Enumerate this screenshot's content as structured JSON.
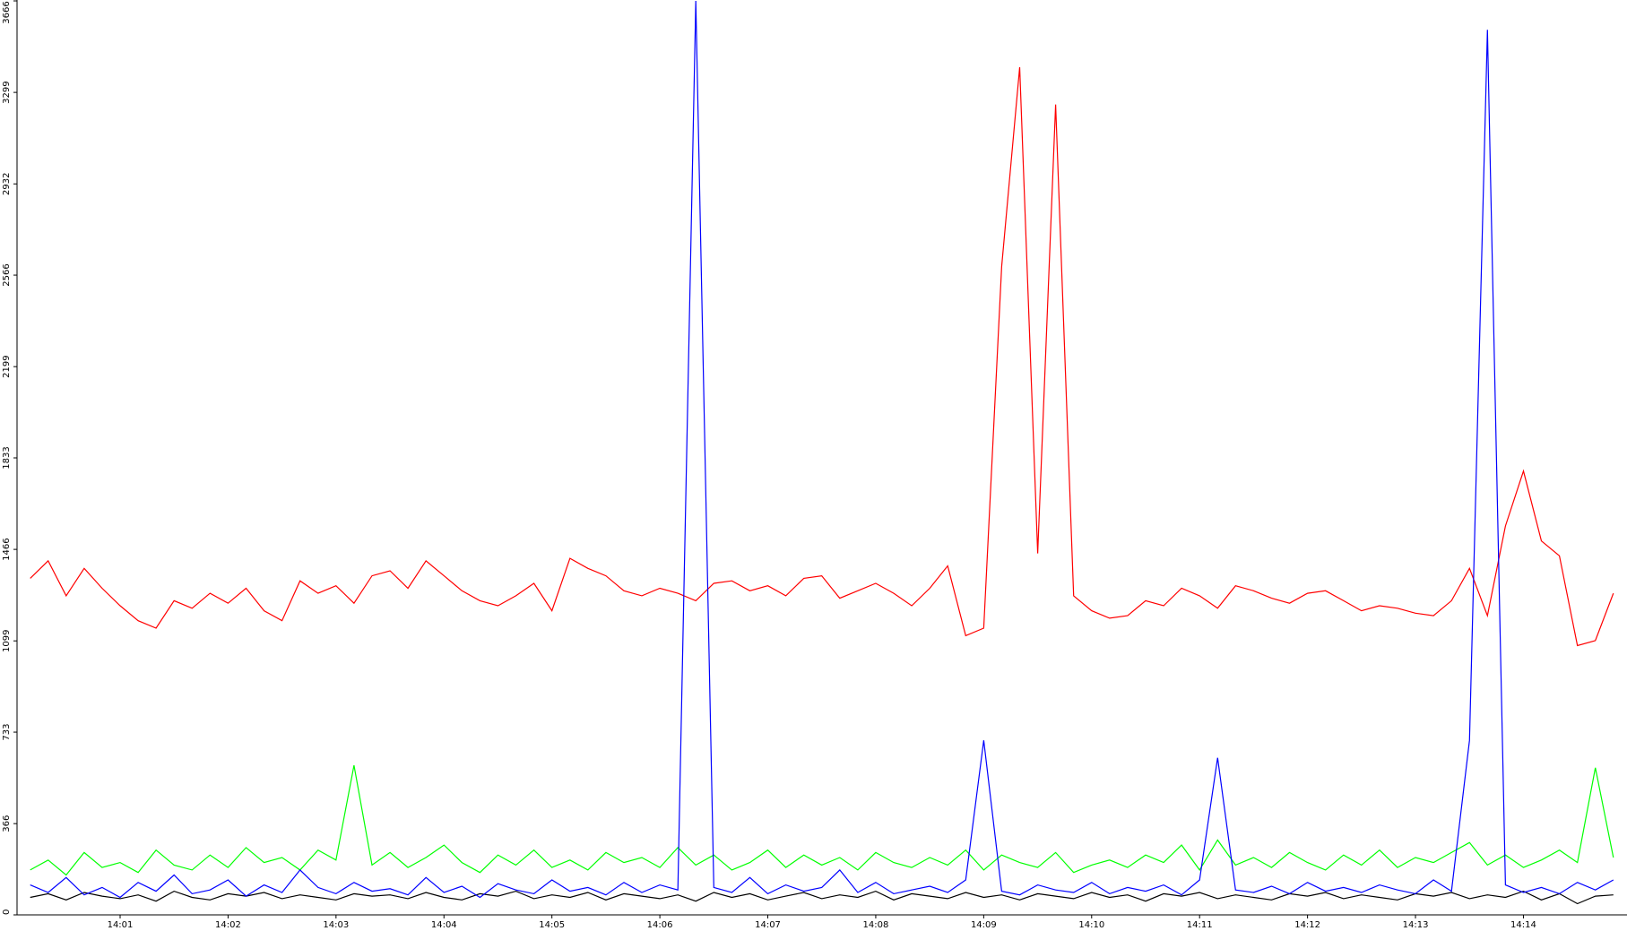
{
  "chart_data": {
    "type": "line",
    "categories": [
      null,
      null,
      null,
      null,
      null,
      "14:01",
      null,
      null,
      null,
      null,
      null,
      "14:02",
      null,
      null,
      null,
      null,
      null,
      "14:03",
      null,
      null,
      null,
      null,
      null,
      "14:04",
      null,
      null,
      null,
      null,
      null,
      "14:05",
      null,
      null,
      null,
      null,
      null,
      "14:06",
      null,
      null,
      null,
      null,
      null,
      "14:07",
      null,
      null,
      null,
      null,
      null,
      "14:08",
      null,
      null,
      null,
      null,
      null,
      "14:09",
      null,
      null,
      null,
      null,
      null,
      "14:10",
      null,
      null,
      null,
      null,
      null,
      "14:11",
      null,
      null,
      null,
      null,
      null,
      "14:12",
      null,
      null,
      null,
      null,
      null,
      "14:13",
      null,
      null,
      null,
      null,
      null,
      "14:14",
      null,
      null,
      null,
      null,
      null
    ],
    "series": [
      {
        "color": "#ff0000",
        "values": [
          1350,
          1420,
          1280,
          1390,
          1310,
          1240,
          1180,
          1150,
          1260,
          1230,
          1290,
          1250,
          1310,
          1220,
          1180,
          1340,
          1290,
          1320,
          1250,
          1360,
          1380,
          1310,
          1420,
          1360,
          1300,
          1260,
          1240,
          1280,
          1330,
          1220,
          1430,
          1390,
          1360,
          1300,
          1280,
          1310,
          1290,
          1260,
          1330,
          1340,
          1300,
          1320,
          1280,
          1350,
          1360,
          1270,
          1300,
          1330,
          1290,
          1240,
          1310,
          1400,
          1120,
          1150,
          2600,
          3400,
          1450,
          3250,
          1280,
          1220,
          1190,
          1200,
          1260,
          1240,
          1310,
          1280,
          1230,
          1320,
          1300,
          1270,
          1250,
          1290,
          1300,
          1260,
          1220,
          1240,
          1230,
          1210,
          1200,
          1260,
          1390,
          1200,
          1560,
          1780,
          1500,
          1440,
          1080,
          1100,
          1290
        ]
      },
      {
        "color": "#00ff00",
        "values": [
          180,
          220,
          160,
          250,
          190,
          210,
          170,
          260,
          200,
          180,
          240,
          190,
          270,
          210,
          230,
          180,
          260,
          220,
          600,
          200,
          250,
          190,
          230,
          280,
          210,
          170,
          240,
          200,
          260,
          190,
          220,
          180,
          250,
          210,
          230,
          190,
          270,
          200,
          240,
          180,
          210,
          260,
          190,
          240,
          200,
          230,
          180,
          250,
          210,
          190,
          230,
          200,
          260,
          180,
          240,
          210,
          190,
          250,
          170,
          200,
          220,
          190,
          240,
          210,
          280,
          180,
          300,
          200,
          230,
          190,
          250,
          210,
          180,
          240,
          200,
          260,
          190,
          230,
          210,
          250,
          290,
          200,
          240,
          190,
          220,
          260,
          210,
          590,
          230
        ]
      },
      {
        "color": "#000000",
        "values": [
          70,
          85,
          60,
          90,
          75,
          65,
          80,
          55,
          95,
          70,
          60,
          85,
          75,
          90,
          65,
          80,
          70,
          60,
          85,
          75,
          80,
          65,
          90,
          70,
          60,
          85,
          75,
          95,
          65,
          80,
          70,
          90,
          60,
          85,
          75,
          65,
          80,
          55,
          90,
          70,
          85,
          60,
          75,
          90,
          65,
          80,
          70,
          95,
          60,
          85,
          75,
          65,
          90,
          70,
          80,
          60,
          85,
          75,
          65,
          90,
          70,
          80,
          55,
          85,
          75,
          90,
          65,
          80,
          70,
          60,
          85,
          75,
          90,
          65,
          80,
          70,
          60,
          85,
          75,
          90,
          65,
          80,
          70,
          95,
          60,
          85,
          45,
          75,
          80
        ]
      },
      {
        "color": "#0000ff",
        "values": [
          120,
          90,
          150,
          80,
          110,
          70,
          130,
          95,
          160,
          85,
          100,
          140,
          75,
          120,
          90,
          180,
          110,
          85,
          130,
          95,
          105,
          80,
          150,
          90,
          115,
          70,
          125,
          100,
          85,
          140,
          95,
          110,
          80,
          130,
          90,
          120,
          100,
          3666,
          110,
          90,
          150,
          85,
          120,
          95,
          110,
          180,
          90,
          130,
          85,
          100,
          115,
          90,
          140,
          700,
          95,
          80,
          120,
          100,
          90,
          130,
          85,
          110,
          95,
          120,
          80,
          140,
          630,
          100,
          90,
          115,
          85,
          130,
          95,
          110,
          90,
          120,
          100,
          85,
          140,
          95,
          700,
          3550,
          120,
          90,
          110,
          85,
          130,
          100,
          140
        ]
      }
    ],
    "ylim": [
      0,
      3666
    ],
    "yticks": [
      0,
      366,
      733,
      1099,
      1466,
      1833,
      2199,
      2566,
      2932,
      3299,
      3666
    ]
  }
}
